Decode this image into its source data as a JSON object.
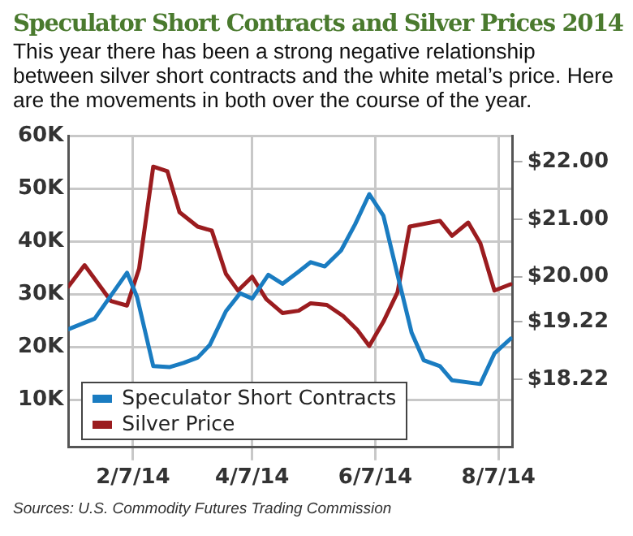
{
  "chart_data": {
    "type": "line",
    "title": "Speculator Short Contracts and Silver Prices 2014",
    "subtitle": "This year there has been a strong negative relationship between silver short contracts and the white metal’s price. Here are the movements in both over the course of the year.",
    "annotations": [
      "Sources: U.S. Commodity Futures Trading Commission"
    ],
    "series": [
      {
        "name": "Speculator Short Contracts",
        "color": "#1a7cc1",
        "axis": "y",
        "x": [
          "2014-01-06",
          "2014-01-19",
          "2014-02-04",
          "2014-02-09",
          "2014-02-17",
          "2014-02-25",
          "2014-03-04",
          "2014-03-11",
          "2014-03-17",
          "2014-03-25",
          "2014-04-01",
          "2014-04-07",
          "2014-04-15",
          "2014-04-22",
          "2014-04-30",
          "2014-05-06",
          "2014-05-13",
          "2014-05-21",
          "2014-05-28",
          "2014-06-04",
          "2014-06-11",
          "2014-06-18",
          "2014-06-25",
          "2014-07-01",
          "2014-07-09",
          "2014-07-15",
          "2014-07-29",
          "2014-08-05",
          "2014-08-13"
        ],
        "values": [
          23400,
          25400,
          34100,
          29500,
          16400,
          16200,
          17000,
          18000,
          20400,
          26800,
          30200,
          29200,
          33700,
          32000,
          34300,
          36100,
          35300,
          38300,
          43300,
          49000,
          44900,
          33700,
          22700,
          17500,
          16400,
          13700,
          13000,
          18800,
          21600
        ]
      },
      {
        "name": "Silver Price",
        "color": "#9b1c1f",
        "axis": "y2",
        "x": [
          "2014-01-06",
          "2014-01-14",
          "2014-01-27",
          "2014-02-04",
          "2014-02-10",
          "2014-02-17",
          "2014-02-24",
          "2014-03-02",
          "2014-03-11",
          "2014-03-18",
          "2014-03-25",
          "2014-03-31",
          "2014-04-07",
          "2014-04-14",
          "2014-04-22",
          "2014-04-30",
          "2014-05-06",
          "2014-05-14",
          "2014-05-22",
          "2014-05-29",
          "2014-06-04",
          "2014-06-11",
          "2014-06-18",
          "2014-06-24",
          "2014-07-09",
          "2014-07-15",
          "2014-07-23",
          "2014-07-29",
          "2014-08-05",
          "2014-08-13"
        ],
        "values": [
          19.83,
          20.2,
          19.58,
          19.5,
          20.14,
          21.91,
          21.83,
          21.12,
          20.87,
          20.8,
          20.05,
          19.76,
          20.0,
          19.61,
          19.37,
          19.41,
          19.54,
          19.51,
          19.32,
          19.08,
          18.8,
          19.22,
          19.73,
          20.87,
          20.97,
          20.71,
          20.94,
          20.58,
          19.76,
          19.87
        ]
      }
    ],
    "xlim": [
      "2014-01-06",
      "2014-08-14"
    ],
    "xticks": [
      {
        "value": "2014-02-07",
        "label": "2/7/14"
      },
      {
        "value": "2014-04-07",
        "label": "4/7/14"
      },
      {
        "value": "2014-06-07",
        "label": "6/7/14"
      },
      {
        "value": "2014-08-07",
        "label": "8/7/14"
      }
    ],
    "ylim": [
      1000,
      60000
    ],
    "yticks": [
      {
        "value": 10000,
        "label": "10K"
      },
      {
        "value": 20000,
        "label": "20K"
      },
      {
        "value": 30000,
        "label": "30K"
      },
      {
        "value": 40000,
        "label": "40K"
      },
      {
        "value": 50000,
        "label": "50K"
      },
      {
        "value": 60000,
        "label": "60K"
      }
    ],
    "y2lim": [
      17.04,
      22.44
    ],
    "y2ticks": [
      {
        "value": 18.22,
        "label": "$18.22"
      },
      {
        "value": 19.22,
        "label": "$19.22"
      },
      {
        "value": 20,
        "label": "$20.00"
      },
      {
        "value": 21,
        "label": "$21.00"
      },
      {
        "value": 22,
        "label": "$22.00"
      }
    ],
    "grid": true,
    "legend": "bottom left",
    "marker": "none",
    "line_style": "solid"
  }
}
